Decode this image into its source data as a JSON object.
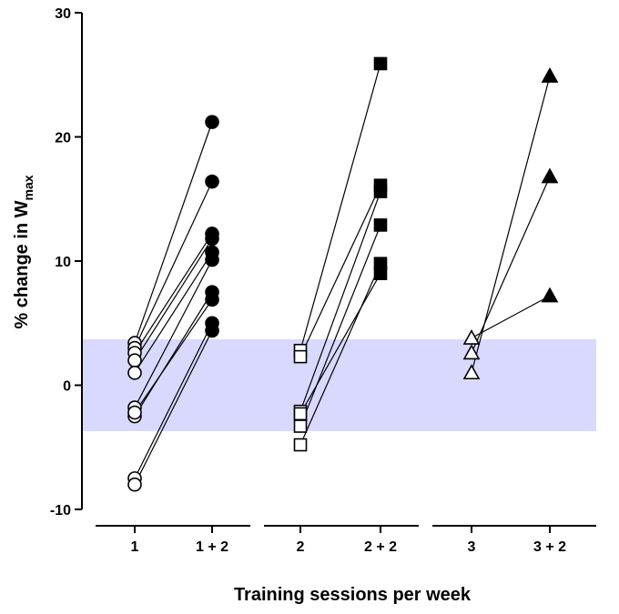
{
  "chart_data": {
    "type": "scatter",
    "title": "",
    "xlabel": "Training sessions per week",
    "ylabel": {
      "prefix": "% change in W",
      "subscript": "max"
    },
    "ylim": [
      -10,
      30
    ],
    "yticks": [
      -10,
      0,
      10,
      20,
      30
    ],
    "grid": false,
    "categories": [
      "1",
      "1 + 2",
      "2",
      "2 + 2",
      "3",
      "3 + 2"
    ],
    "groups": [
      {
        "categories": [
          "1",
          "1 + 2"
        ]
      },
      {
        "categories": [
          "2",
          "2 + 2"
        ]
      },
      {
        "categories": [
          "3",
          "3 + 2"
        ]
      }
    ],
    "band": {
      "from": -3.7,
      "to": 3.7,
      "color": "#d9d9ff"
    },
    "series": [
      {
        "from_category": "1",
        "to_category": "1 + 2",
        "marker": "circle",
        "pairs": [
          [
            3.4,
            21.2
          ],
          [
            3.0,
            16.4
          ],
          [
            2.6,
            12.2
          ],
          [
            2.0,
            11.8
          ],
          [
            1.0,
            10.7
          ],
          [
            -1.8,
            10.1
          ],
          [
            -2.5,
            7.5
          ],
          [
            -2.2,
            6.9
          ],
          [
            -7.5,
            5.0
          ],
          [
            -8.0,
            4.4
          ]
        ]
      },
      {
        "from_category": "2",
        "to_category": "2 + 2",
        "marker": "square",
        "pairs": [
          [
            2.8,
            25.9
          ],
          [
            2.3,
            16.1
          ],
          [
            -2.1,
            15.6
          ],
          [
            -3.3,
            12.9
          ],
          [
            -4.8,
            9.8
          ],
          [
            -2.3,
            9.0
          ]
        ]
      },
      {
        "from_category": "3",
        "to_category": "3 + 2",
        "marker": "triangle",
        "pairs": [
          [
            3.8,
            7.2
          ],
          [
            2.6,
            16.8
          ],
          [
            1.0,
            24.9
          ]
        ]
      }
    ],
    "colors": {
      "open_fill": "#ffffff",
      "filled": "#000000",
      "line": "#000000"
    }
  }
}
